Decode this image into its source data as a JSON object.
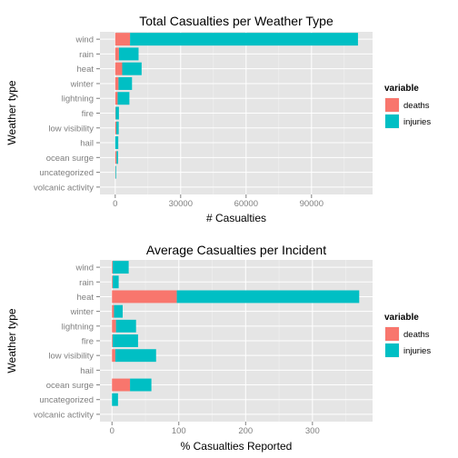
{
  "chart_data": [
    {
      "type": "bar",
      "orientation": "horizontal",
      "stacked": true,
      "title": "Total Casualties per Weather Type",
      "xlabel": "# Casualties",
      "ylabel": "Weather type",
      "categories": [
        "wind",
        "rain",
        "heat",
        "winter",
        "lightning",
        "fire",
        "low visibility",
        "hail",
        "ocean surge",
        "uncategorized",
        "volcanic activity"
      ],
      "series": [
        {
          "name": "deaths",
          "color": "#F8766D",
          "values": [
            6800,
            1700,
            3200,
            1500,
            1100,
            200,
            500,
            0,
            600,
            100,
            0
          ]
        },
        {
          "name": "injuries",
          "color": "#00BFC4",
          "values": [
            104500,
            9000,
            8900,
            6200,
            5400,
            1500,
            1100,
            1400,
            700,
            300,
            0
          ]
        }
      ],
      "xlim": [
        -7000,
        118000
      ],
      "xticks": [
        0,
        30000,
        60000,
        90000
      ],
      "xtick_labels": [
        "0",
        "30000",
        "60000",
        "90000"
      ],
      "grid": true,
      "legend": {
        "title": "variable",
        "position": "right",
        "items": [
          "deaths",
          "injuries"
        ]
      }
    },
    {
      "type": "bar",
      "orientation": "horizontal",
      "stacked": true,
      "title": "Average Casualties per Incident",
      "xlabel": "% Casualties Reported",
      "ylabel": "Weather type",
      "categories": [
        "wind",
        "rain",
        "heat",
        "winter",
        "lightning",
        "fire",
        "low visibility",
        "hail",
        "ocean surge",
        "uncategorized",
        "volcanic activity"
      ],
      "series": [
        {
          "name": "deaths",
          "color": "#F8766D",
          "values": [
            1,
            1,
            97,
            3,
            6,
            1,
            5,
            0,
            27,
            0,
            0
          ]
        },
        {
          "name": "injuries",
          "color": "#00BFC4",
          "values": [
            24,
            9,
            273,
            13,
            30,
            38,
            61,
            0,
            32,
            9,
            0
          ]
        }
      ],
      "xlim": [
        -18,
        390
      ],
      "xticks": [
        0,
        100,
        200,
        300
      ],
      "xtick_labels": [
        "0",
        "100",
        "200",
        "300"
      ],
      "grid": true,
      "legend": {
        "title": "variable",
        "position": "right",
        "items": [
          "deaths",
          "injuries"
        ]
      }
    }
  ]
}
